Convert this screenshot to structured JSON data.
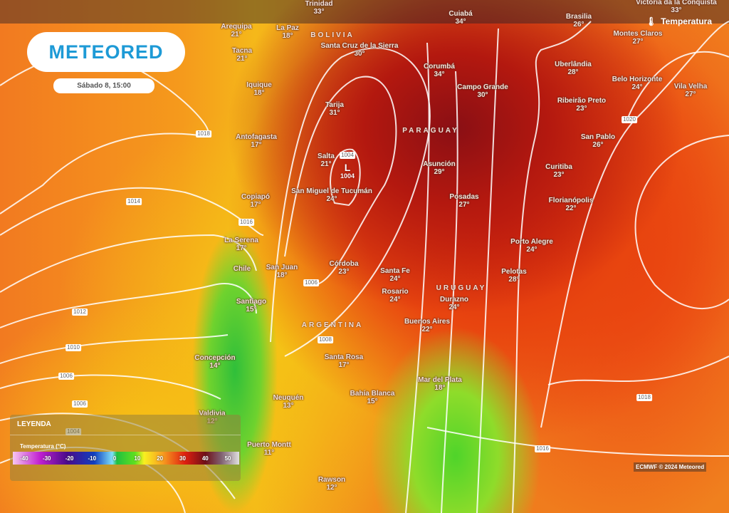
{
  "header": {
    "brand": "METEORED",
    "datetime": "Sábado 8, 15:00",
    "layer": "Temperatura",
    "layer_icon": "thermometer-icon"
  },
  "countries": [
    "BOLIVIA",
    "PARAGUAY",
    "URUGUAY",
    "ARGENTINA"
  ],
  "cities": [
    {
      "name": "Trinidad",
      "temp": "33°"
    },
    {
      "name": "Cuiabá",
      "temp": "34°"
    },
    {
      "name": "Brasilia",
      "temp": "26°"
    },
    {
      "name": "Victoria da la Conquista",
      "temp": "33°"
    },
    {
      "name": "Arequipa",
      "temp": "21°"
    },
    {
      "name": "La Paz",
      "temp": "18°"
    },
    {
      "name": "Santa Cruz de la Sierra",
      "temp": "30°"
    },
    {
      "name": "Tacna",
      "temp": "21°"
    },
    {
      "name": "Corumbá",
      "temp": "34°"
    },
    {
      "name": "Campo Grande",
      "temp": "30°"
    },
    {
      "name": "Uberlândia",
      "temp": "28°"
    },
    {
      "name": "Montes Claros",
      "temp": "27°"
    },
    {
      "name": "Belo Horizonte",
      "temp": "24°"
    },
    {
      "name": "Vila Velha",
      "temp": "27°"
    },
    {
      "name": "Ribeirão Preto",
      "temp": "23°"
    },
    {
      "name": "Iquique",
      "temp": "18°"
    },
    {
      "name": "Tarija",
      "temp": "31°"
    },
    {
      "name": "Antofagasta",
      "temp": "17°"
    },
    {
      "name": "San Pablo",
      "temp": "26°"
    },
    {
      "name": "Salta",
      "temp": "21°"
    },
    {
      "name": "Asunción",
      "temp": "29°"
    },
    {
      "name": "Curitiba",
      "temp": "23°"
    },
    {
      "name": "San Miguel de Tucumán",
      "temp": "24°"
    },
    {
      "name": "Copiapó",
      "temp": "17°"
    },
    {
      "name": "Posadas",
      "temp": "27°"
    },
    {
      "name": "Florianópolis",
      "temp": "22°"
    },
    {
      "name": "La Serena",
      "temp": "17°"
    },
    {
      "name": "Porto Alegre",
      "temp": "24°"
    },
    {
      "name": "Chile",
      "temp": ""
    },
    {
      "name": "San Juan",
      "temp": "18°"
    },
    {
      "name": "Córdoba",
      "temp": "23°"
    },
    {
      "name": "Santa Fe",
      "temp": "24°"
    },
    {
      "name": "Pelotas",
      "temp": "28°"
    },
    {
      "name": "Rosario",
      "temp": "24°"
    },
    {
      "name": "Durazno",
      "temp": "24°"
    },
    {
      "name": "Santiago",
      "temp": "15°"
    },
    {
      "name": "Buenos Aires",
      "temp": "22°"
    },
    {
      "name": "Concepción",
      "temp": "14°"
    },
    {
      "name": "Santa Rosa",
      "temp": "17°"
    },
    {
      "name": "Mar del Plata",
      "temp": "18°"
    },
    {
      "name": "Bahía Blanca",
      "temp": "15°"
    },
    {
      "name": "Neuquén",
      "temp": "13°"
    },
    {
      "name": "Valdivia",
      "temp": "12°"
    },
    {
      "name": "Puerto Montt",
      "temp": "11°"
    },
    {
      "name": "Rawson",
      "temp": "12°"
    }
  ],
  "isobar_labels": [
    "1018",
    "1014",
    "1016",
    "1012",
    "1010",
    "1006",
    "1006",
    "1004",
    "1004",
    "1006",
    "1008",
    "1020",
    "1016",
    "1018"
  ],
  "low": {
    "symbol": "L",
    "pressure": "1004"
  },
  "legend": {
    "title": "LEYENDA",
    "unit": "Temperatura (°C)",
    "ticks": [
      "-40",
      "-30",
      "-20",
      "-10",
      "0",
      "10",
      "20",
      "30",
      "40",
      "50"
    ]
  },
  "credit": "ECMWF © 2024 Meteored"
}
